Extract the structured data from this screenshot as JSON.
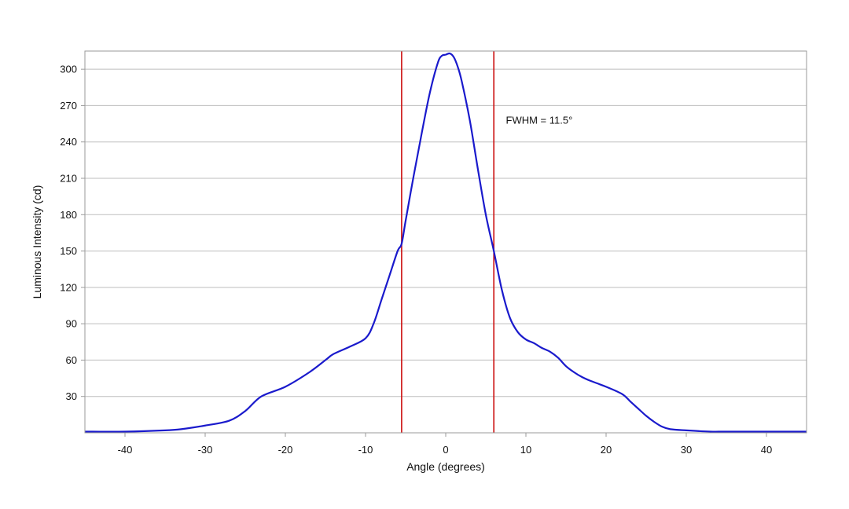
{
  "chart_data": {
    "type": "line",
    "title": "",
    "xlabel": "Angle (degrees)",
    "ylabel": "Luminous Intensity (cd)",
    "xlim": [
      -45,
      45
    ],
    "ylim": [
      0,
      315
    ],
    "grid": "horizontal",
    "legend": "none",
    "x_ticks": [
      -40,
      -30,
      -20,
      -10,
      0,
      10,
      20,
      30,
      40
    ],
    "y_ticks": [
      30,
      60,
      90,
      120,
      150,
      180,
      210,
      240,
      270,
      300
    ],
    "x_tick_labels": [
      "-40",
      "-30",
      "-20",
      "-10",
      "0",
      "10",
      "20",
      "30",
      "40"
    ],
    "y_tick_labels": [
      "30",
      "60",
      "90",
      "120",
      "150",
      "180",
      "210",
      "240",
      "270",
      "300"
    ],
    "series": [
      {
        "color": "#1a1acc",
        "x": [
          -45,
          -40,
          -35,
          -33,
          -30,
          -27,
          -25,
          -23,
          -20,
          -17,
          -15,
          -14,
          -12,
          -10,
          -9,
          -8,
          -7,
          -6,
          -5.5,
          -5,
          -4,
          -3,
          -2,
          -1,
          -0.5,
          0,
          0.5,
          1,
          1.5,
          2,
          3,
          4,
          5,
          6,
          7,
          8,
          9,
          10,
          11,
          12,
          13,
          14,
          15,
          16,
          17,
          18,
          20,
          22,
          23,
          24,
          25,
          26,
          27,
          28,
          30,
          33,
          35,
          40,
          45
        ],
        "y": [
          1,
          1,
          2,
          3,
          6,
          10,
          18,
          30,
          38,
          50,
          60,
          65,
          71,
          78,
          90,
          110,
          130,
          150,
          156,
          175,
          212,
          247,
          280,
          305,
          311,
          312,
          313,
          310,
          302,
          290,
          258,
          218,
          180,
          150,
          118,
          95,
          83,
          77,
          74,
          70,
          67,
          62,
          55,
          50,
          46,
          43,
          38,
          32,
          26,
          20,
          14,
          9,
          5,
          3,
          2,
          1,
          1,
          1,
          1
        ]
      }
    ],
    "vertical_lines": [
      {
        "x": -5.5,
        "color": "#cc1111"
      },
      {
        "x": 6.0,
        "color": "#cc1111"
      }
    ],
    "annotations": [
      {
        "text": "FWHM = 11.5°",
        "x": 7.5,
        "y": 255
      }
    ]
  }
}
